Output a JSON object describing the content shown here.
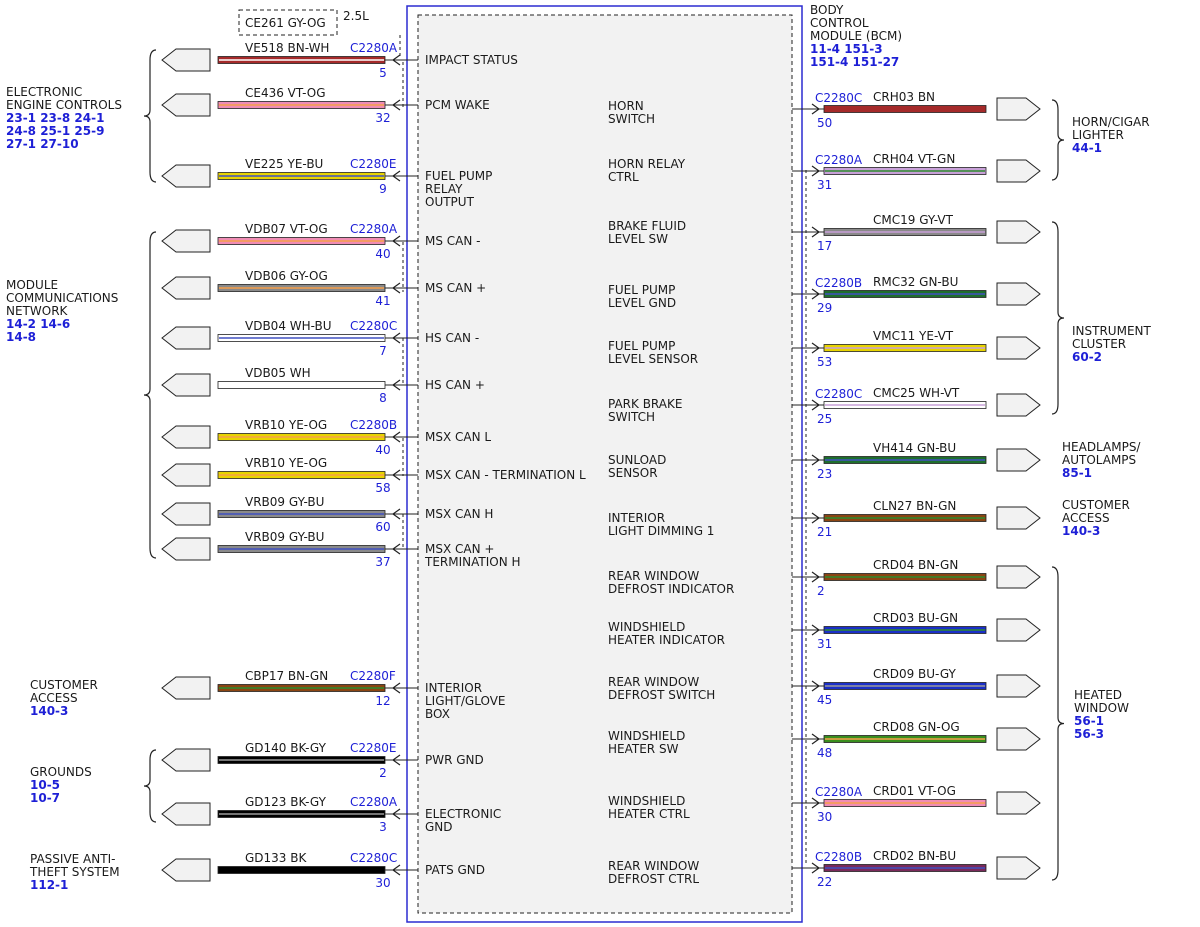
{
  "module": {
    "title": [
      "BODY",
      "CONTROL",
      "MODULE (BCM)"
    ],
    "refs": [
      "11-4  151-3",
      "151-4  151-27"
    ]
  },
  "engine_variant": {
    "circuit": "CE261  GY-OG",
    "label": "2.5L"
  },
  "left_groups": [
    {
      "lines": [
        "ELECTRONIC",
        "ENGINE CONTROLS"
      ],
      "refs": [
        "23-1 23-8 24-1",
        "24-8 25-1 25-9",
        "27-1 27-10"
      ]
    },
    {
      "lines": [
        "MODULE",
        "COMMUNICATIONS",
        "NETWORK"
      ],
      "refs": [
        "14-2  14-6",
        "14-8"
      ]
    },
    {
      "lines": [
        "CUSTOMER",
        "ACCESS"
      ],
      "refs": [
        "140-3"
      ]
    },
    {
      "lines": [
        "GROUNDS"
      ],
      "refs": [
        "10-5",
        "10-7"
      ]
    },
    {
      "lines": [
        "PASSIVE ANTI-",
        "THEFT SYSTEM"
      ],
      "refs": [
        "112-1"
      ]
    }
  ],
  "right_groups": [
    {
      "lines": [
        "HORN/CIGAR",
        "LIGHTER"
      ],
      "refs": [
        "44-1"
      ]
    },
    {
      "lines": [
        "INSTRUMENT",
        "CLUSTER"
      ],
      "refs": [
        "60-2"
      ]
    },
    {
      "lines": [
        "HEADLAMPS/",
        "AUTOLAMPS"
      ],
      "refs": [
        "85-1"
      ]
    },
    {
      "lines": [
        "CUSTOMER",
        "ACCESS"
      ],
      "refs": [
        "140-3"
      ]
    },
    {
      "lines": [
        "HEATED",
        "WINDOW"
      ],
      "refs": [
        "56-1",
        "56-3"
      ]
    }
  ],
  "left_wires": [
    {
      "circuit": "VE518  BN-WH",
      "connector": "C2280A",
      "pin": "5",
      "function": [
        "IMPACT STATUS"
      ],
      "colors": [
        "#a52a2a",
        "#ffffff"
      ]
    },
    {
      "circuit": "CE436  VT-OG",
      "connector": "",
      "pin": "32",
      "function": [
        "PCM WAKE"
      ],
      "colors": [
        "#f08cb4",
        "#f6a04a"
      ]
    },
    {
      "circuit": "VE225  YE-BU",
      "connector": "C2280E",
      "pin": "9",
      "function": [
        "FUEL PUMP",
        "RELAY",
        "OUTPUT"
      ],
      "colors": [
        "#e8d400",
        "#4050c0"
      ]
    },
    {
      "circuit": "VDB07  VT-OG",
      "connector": "C2280A",
      "pin": "40",
      "function": [
        "MS CAN -"
      ],
      "colors": [
        "#f08cb4",
        "#f6a04a"
      ]
    },
    {
      "circuit": "VDB06  GY-OG",
      "connector": "",
      "pin": "41",
      "function": [
        "MS CAN +"
      ],
      "colors": [
        "#8a8a8a",
        "#f6a04a"
      ]
    },
    {
      "circuit": "VDB04  WH-BU",
      "connector": "C2280C",
      "pin": "7",
      "function": [
        "HS CAN -"
      ],
      "colors": [
        "#ffffff",
        "#4050c0"
      ]
    },
    {
      "circuit": "VDB05  WH",
      "connector": "",
      "pin": "8",
      "function": [
        "HS CAN +"
      ],
      "colors": [
        "#ffffff",
        "#ffffff"
      ]
    },
    {
      "circuit": "VRB10  YE-OG",
      "connector": "C2280B",
      "pin": "40",
      "function": [
        "MSX CAN L"
      ],
      "colors": [
        "#e8d400",
        "#f6a04a"
      ]
    },
    {
      "circuit": "VRB10  YE-OG",
      "connector": "",
      "pin": "58",
      "function": [
        "MSX CAN - TERMINATION L"
      ],
      "colors": [
        "#e8d400",
        "#f6a04a"
      ]
    },
    {
      "circuit": "VRB09  GY-BU",
      "connector": "",
      "pin": "60",
      "function": [
        "MSX CAN H"
      ],
      "colors": [
        "#8a8a8a",
        "#4050c0"
      ]
    },
    {
      "circuit": "VRB09  GY-BU",
      "connector": "",
      "pin": "37",
      "function": [
        "MSX CAN +",
        "TERMINATION H"
      ],
      "colors": [
        "#8a8a8a",
        "#4050c0"
      ]
    },
    {
      "circuit": "CBP17  BN-GN",
      "connector": "C2280F",
      "pin": "12",
      "function": [
        "INTERIOR",
        "LIGHT/GLOVE",
        "BOX"
      ],
      "colors": [
        "#8b4513",
        "#2e8b2e"
      ]
    },
    {
      "circuit": "GD140  BK-GY",
      "connector": "C2280E",
      "pin": "2",
      "function": [
        "PWR GND"
      ],
      "colors": [
        "#000000",
        "#9a9a9a"
      ]
    },
    {
      "circuit": "GD123  BK-GY",
      "connector": "C2280A",
      "pin": "3",
      "function": [
        "ELECTRONIC",
        "GND"
      ],
      "colors": [
        "#000000",
        "#9a9a9a"
      ]
    },
    {
      "circuit": "GD133  BK",
      "connector": "C2280C",
      "pin": "30",
      "function": [
        "PATS GND"
      ],
      "colors": [
        "#000000",
        "#000000"
      ]
    }
  ],
  "right_wires": [
    {
      "circuit": "CRH03  BN",
      "connector": "C2280C",
      "pin": "50",
      "function": [
        "HORN",
        "SWITCH"
      ],
      "colors": [
        "#a52a2a",
        "#a52a2a"
      ]
    },
    {
      "circuit": "CRH04  VT-GN",
      "connector": "C2280A",
      "pin": "31",
      "function": [
        "HORN RELAY",
        "CTRL"
      ],
      "colors": [
        "#c8a0d8",
        "#2e8b2e"
      ]
    },
    {
      "circuit": "CMC19  GY-VT",
      "connector": "",
      "pin": "17",
      "function": [
        "BRAKE FLUID",
        "LEVEL SW"
      ],
      "colors": [
        "#8a8a8a",
        "#c8a0d8"
      ]
    },
    {
      "circuit": "RMC32  GN-BU",
      "connector": "C2280B",
      "pin": "29",
      "function": [
        "FUEL PUMP",
        "LEVEL GND"
      ],
      "colors": [
        "#1e6e2e",
        "#4050c0"
      ]
    },
    {
      "circuit": "VMC11  YE-VT",
      "connector": "",
      "pin": "53",
      "function": [
        "FUEL PUMP",
        "LEVEL SENSOR"
      ],
      "colors": [
        "#e8d400",
        "#c8a0d8"
      ]
    },
    {
      "circuit": "CMC25  WH-VT",
      "connector": "C2280C",
      "pin": "25",
      "function": [
        "PARK BRAKE",
        "SWITCH"
      ],
      "colors": [
        "#ffffff",
        "#c8a0d8"
      ]
    },
    {
      "circuit": "VH414  GN-BU",
      "connector": "",
      "pin": "23",
      "function": [
        "SUNLOAD",
        "SENSOR"
      ],
      "colors": [
        "#1e6e2e",
        "#4050c0"
      ]
    },
    {
      "circuit": "CLN27  BN-GN",
      "connector": "",
      "pin": "21",
      "function": [
        "INTERIOR",
        "LIGHT DIMMING 1"
      ],
      "colors": [
        "#8b4513",
        "#2e8b2e"
      ]
    },
    {
      "circuit": "CRD04  BN-GN",
      "connector": "",
      "pin": "2",
      "function": [
        "REAR WINDOW",
        "DEFROST INDICATOR"
      ],
      "colors": [
        "#8b4513",
        "#2e8b2e"
      ]
    },
    {
      "circuit": "CRD03  BU-GN",
      "connector": "",
      "pin": "31",
      "function": [
        "WINDSHIELD",
        "HEATER INDICATOR"
      ],
      "colors": [
        "#1a2fc8",
        "#2e8b2e"
      ]
    },
    {
      "circuit": "CRD09  BU-GY",
      "connector": "",
      "pin": "45",
      "function": [
        "REAR WINDOW",
        "DEFROST SWITCH"
      ],
      "colors": [
        "#1a2fc8",
        "#9a9a9a"
      ]
    },
    {
      "circuit": "CRD08  GN-OG",
      "connector": "",
      "pin": "48",
      "function": [
        "WINDSHIELD",
        "HEATER SW"
      ],
      "colors": [
        "#3a8e1e",
        "#f6a04a"
      ]
    },
    {
      "circuit": "CRD01  VT-OG",
      "connector": "C2280A",
      "pin": "30",
      "function": [
        "WINDSHIELD",
        "HEATER CTRL"
      ],
      "colors": [
        "#f08cb4",
        "#f6a04a"
      ]
    },
    {
      "circuit": "CRD02  BN-BU",
      "connector": "C2280B",
      "pin": "22",
      "function": [
        "REAR WINDOW",
        "DEFROST CTRL"
      ],
      "colors": [
        "#7a2a5a",
        "#4050c0"
      ]
    }
  ]
}
